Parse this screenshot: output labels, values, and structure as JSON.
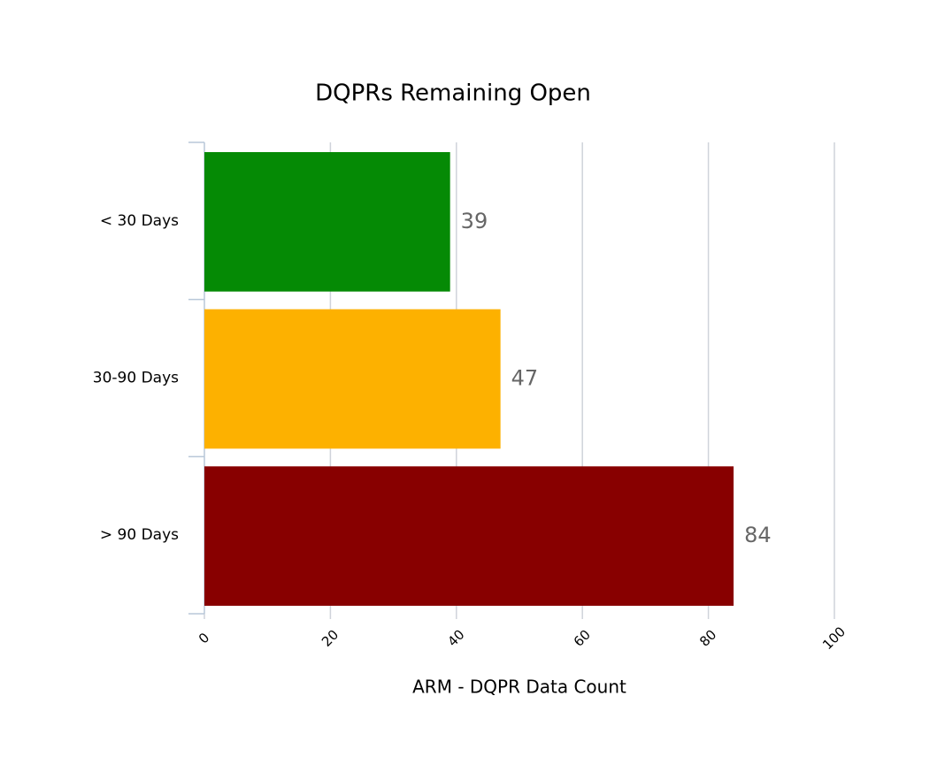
{
  "chart_data": {
    "type": "bar",
    "orientation": "horizontal",
    "title": "DQPRs Remaining Open",
    "x_label": "ARM - DQPR Data Count",
    "categories": [
      "< 30 Days",
      "30-90 Days",
      "> 90 Days"
    ],
    "values": [
      39,
      47,
      84
    ],
    "colors": [
      "#058a05",
      "#fdb100",
      "#880000"
    ],
    "xlim": [
      0,
      100
    ],
    "xticks": [
      0,
      20,
      40,
      60,
      80,
      100
    ],
    "grid": true
  }
}
